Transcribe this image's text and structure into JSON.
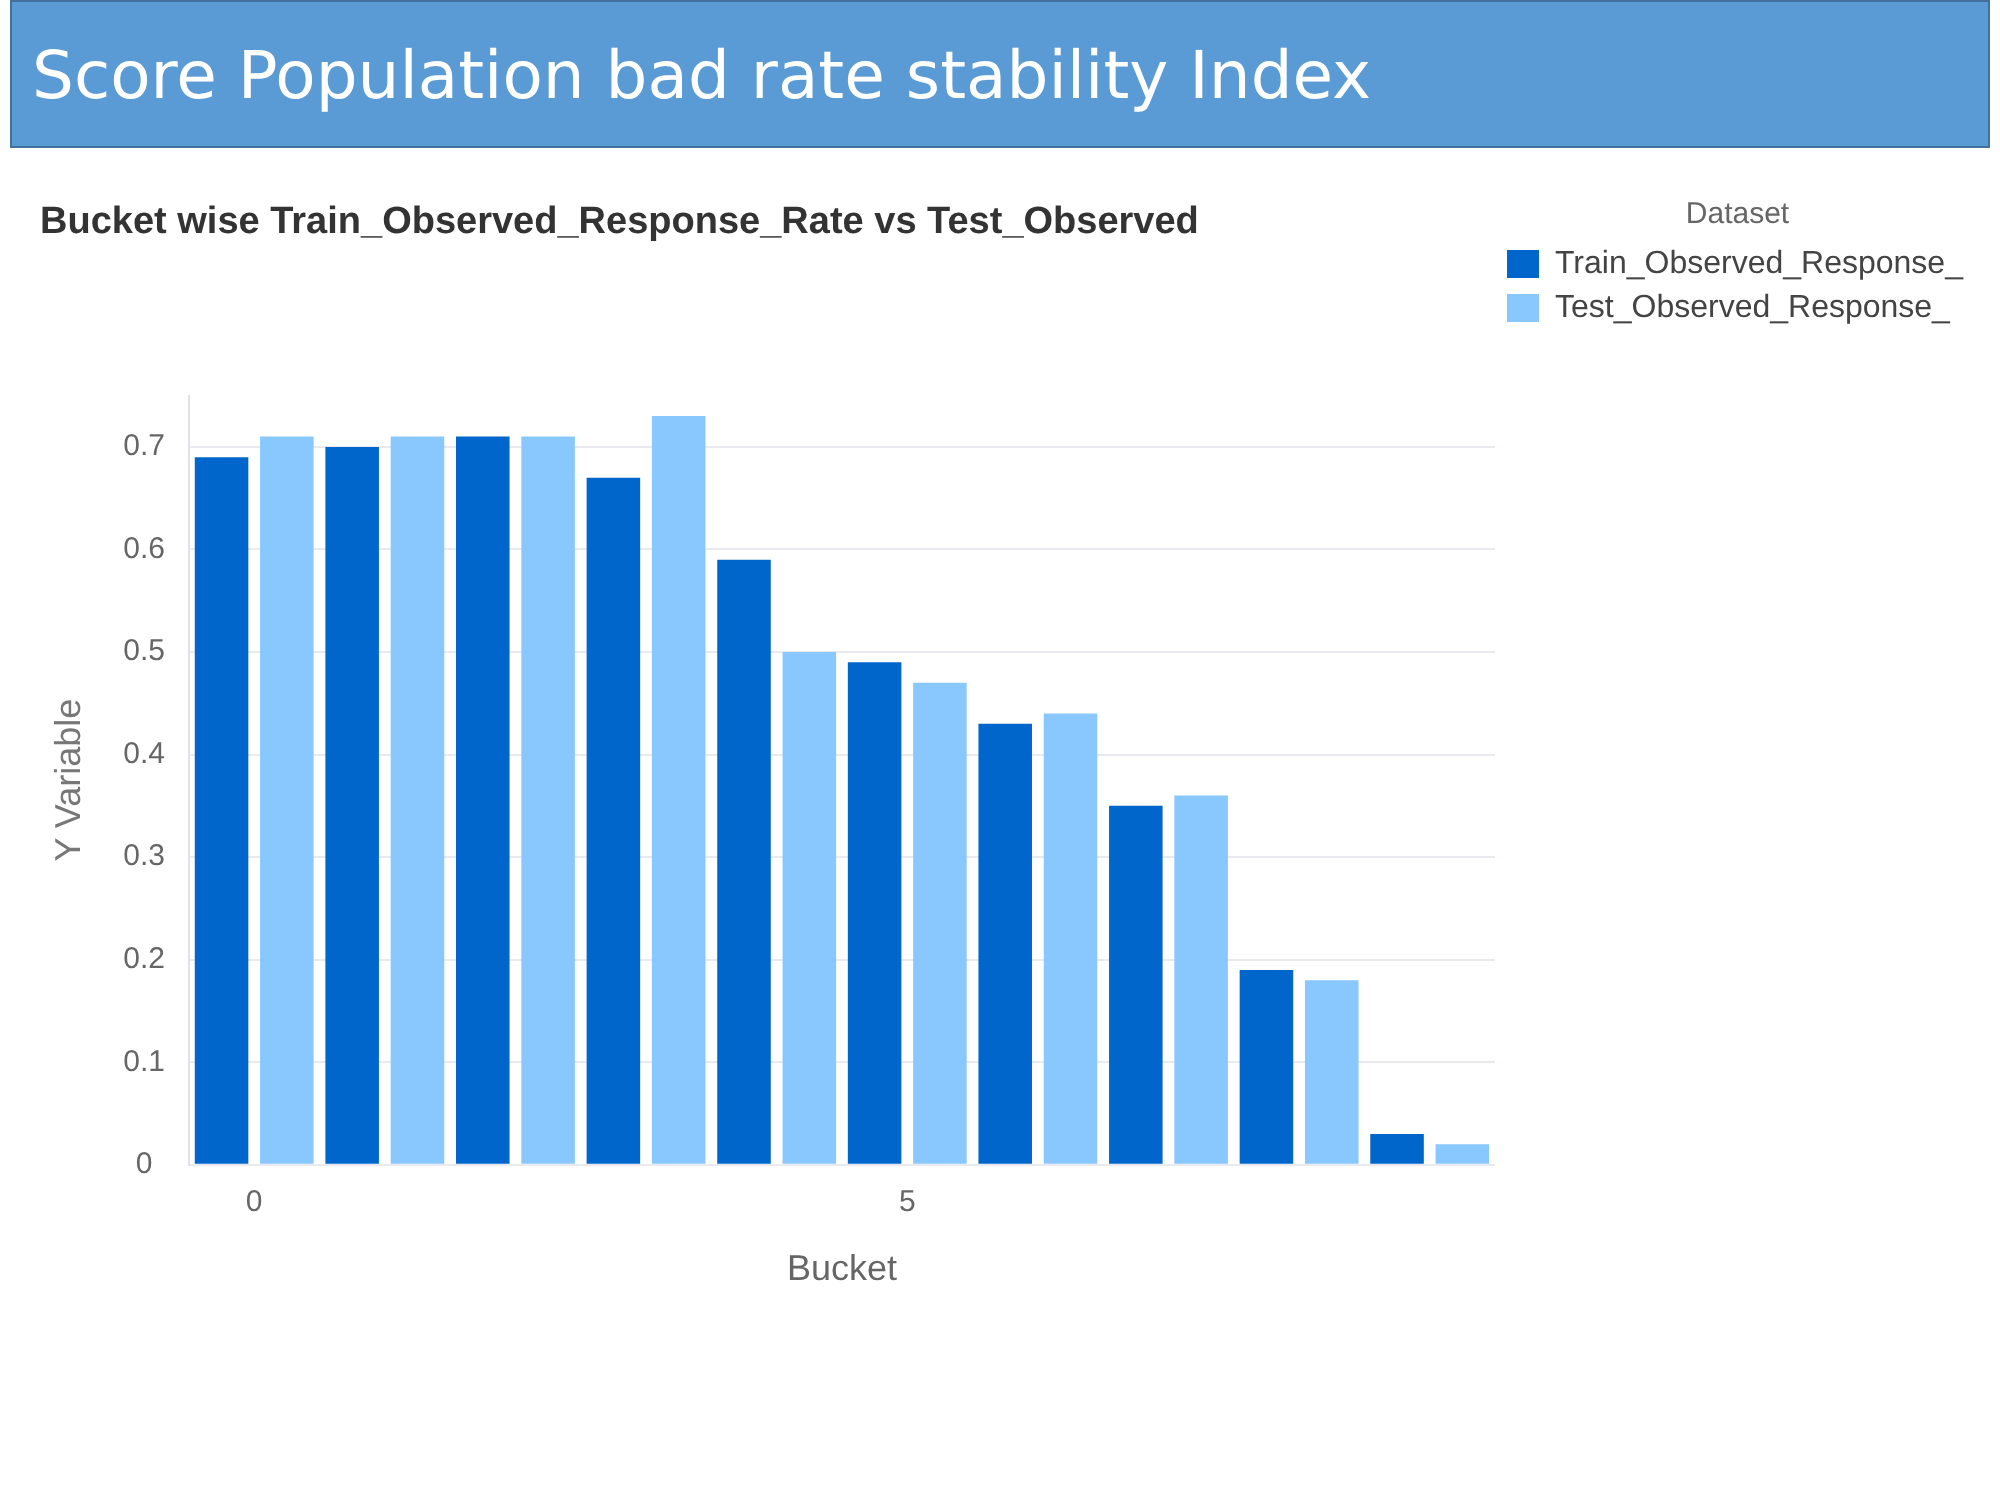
{
  "chart_data": {
    "type": "bar",
    "title": "Score Population bad rate stability Index",
    "subtitle": "Bucket wise Train_Observed_Response_Rate vs Test_Observed",
    "xlabel": "Bucket",
    "ylabel": "Y Variable",
    "legend_title": "Dataset",
    "x": [
      0,
      1,
      2,
      3,
      4,
      5,
      6,
      7,
      8,
      9
    ],
    "series": [
      {
        "name": "Train_Observed_Response_",
        "color": "#0066cc",
        "values": [
          0.69,
          0.7,
          0.71,
          0.67,
          0.59,
          0.49,
          0.43,
          0.35,
          0.19,
          0.03
        ]
      },
      {
        "name": "Test_Observed_Response_",
        "color": "#88c8ff",
        "values": [
          0.71,
          0.71,
          0.71,
          0.73,
          0.5,
          0.47,
          0.44,
          0.36,
          0.18,
          0.02
        ]
      }
    ],
    "xlim": [
      -0.5,
      9.5
    ],
    "xticks": [
      0,
      5
    ],
    "ylim": [
      0,
      0.75
    ],
    "yticks": [
      0,
      0.1,
      0.2,
      0.3,
      0.4,
      0.5,
      0.6,
      0.7
    ],
    "grid": "y",
    "legend": "top right"
  }
}
